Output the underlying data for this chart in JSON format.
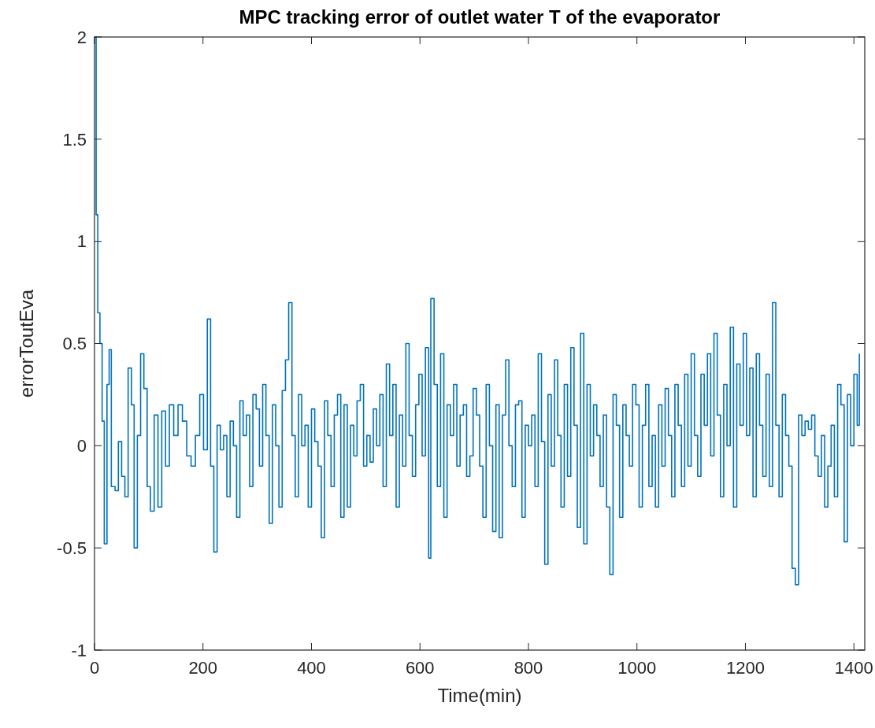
{
  "chart_data": {
    "type": "step",
    "title": "MPC tracking error of outlet water T of the evaporator",
    "xlabel": "Time(min)",
    "ylabel": "errorToutEva",
    "xlim": [
      0,
      1420
    ],
    "xticks": [
      0,
      200,
      400,
      600,
      800,
      1000,
      1200,
      1400
    ],
    "ylim": [
      -1,
      2
    ],
    "yticks": [
      -1,
      -0.5,
      0,
      0.5,
      1,
      1.5,
      2
    ],
    "grid": false,
    "x": [
      0,
      3,
      6,
      10,
      14,
      18,
      23,
      27,
      31,
      38,
      44,
      50,
      56,
      62,
      68,
      73,
      79,
      85,
      91,
      97,
      103,
      110,
      117,
      124,
      131,
      138,
      146,
      154,
      162,
      170,
      178,
      186,
      194,
      201,
      208,
      214,
      220,
      226,
      232,
      238,
      244,
      250,
      256,
      262,
      268,
      274,
      280,
      286,
      292,
      298,
      304,
      310,
      316,
      322,
      328,
      334,
      340,
      346,
      352,
      358,
      364,
      370,
      376,
      382,
      388,
      394,
      400,
      406,
      412,
      418,
      424,
      430,
      436,
      442,
      448,
      454,
      460,
      466,
      472,
      478,
      484,
      490,
      496,
      502,
      508,
      514,
      520,
      526,
      532,
      538,
      544,
      550,
      556,
      562,
      568,
      574,
      580,
      586,
      592,
      598,
      604,
      610,
      616,
      620,
      626,
      632,
      638,
      644,
      650,
      656,
      662,
      668,
      674,
      680,
      686,
      692,
      698,
      704,
      710,
      716,
      722,
      728,
      734,
      740,
      746,
      752,
      758,
      764,
      770,
      776,
      782,
      788,
      794,
      800,
      806,
      812,
      818,
      824,
      830,
      836,
      842,
      848,
      854,
      860,
      866,
      872,
      878,
      884,
      890,
      896,
      902,
      908,
      914,
      920,
      926,
      932,
      938,
      944,
      950,
      956,
      962,
      968,
      974,
      980,
      986,
      992,
      998,
      1004,
      1010,
      1016,
      1022,
      1028,
      1034,
      1040,
      1046,
      1052,
      1058,
      1064,
      1070,
      1076,
      1082,
      1088,
      1094,
      1100,
      1106,
      1112,
      1118,
      1124,
      1130,
      1136,
      1142,
      1148,
      1154,
      1160,
      1166,
      1172,
      1178,
      1184,
      1190,
      1196,
      1202,
      1208,
      1214,
      1220,
      1226,
      1232,
      1238,
      1244,
      1250,
      1256,
      1262,
      1268,
      1274,
      1280,
      1286,
      1292,
      1298,
      1304,
      1310,
      1316,
      1322,
      1328,
      1334,
      1340,
      1346,
      1352,
      1358,
      1364,
      1370,
      1376,
      1382,
      1388,
      1394,
      1400,
      1406,
      1410
    ],
    "series": [
      {
        "color": "#0072bd",
        "values": [
          2.0,
          1.13,
          0.65,
          0.5,
          0.12,
          -0.48,
          0.3,
          0.47,
          -0.2,
          -0.22,
          0.02,
          -0.15,
          -0.25,
          0.38,
          0.2,
          -0.5,
          0.05,
          0.45,
          0.28,
          -0.2,
          -0.32,
          0.15,
          -0.3,
          0.17,
          -0.1,
          0.2,
          0.05,
          0.2,
          0.12,
          -0.05,
          -0.1,
          0.05,
          0.25,
          -0.02,
          0.62,
          -0.1,
          -0.52,
          0.1,
          -0.02,
          0.05,
          -0.25,
          0.12,
          0.0,
          -0.35,
          0.22,
          0.05,
          0.15,
          -0.2,
          0.25,
          0.18,
          -0.1,
          0.3,
          0.05,
          -0.38,
          0.2,
          0.0,
          -0.3,
          0.27,
          0.42,
          0.7,
          0.05,
          -0.25,
          0.25,
          0.0,
          0.1,
          -0.3,
          0.18,
          0.02,
          -0.1,
          -0.45,
          0.22,
          0.05,
          -0.2,
          0.15,
          0.25,
          -0.35,
          0.2,
          -0.3,
          0.1,
          -0.05,
          0.22,
          0.3,
          -0.1,
          0.05,
          -0.08,
          0.18,
          0.0,
          0.25,
          -0.2,
          0.4,
          0.05,
          0.3,
          -0.3,
          0.15,
          -0.1,
          0.5,
          0.05,
          -0.15,
          0.2,
          0.35,
          -0.05,
          0.48,
          -0.55,
          0.72,
          0.3,
          -0.2,
          0.45,
          -0.35,
          0.2,
          0.05,
          0.3,
          -0.1,
          0.15,
          0.2,
          -0.15,
          -0.05,
          0.28,
          0.15,
          -0.1,
          -0.35,
          0.3,
          0.0,
          -0.42,
          0.2,
          -0.45,
          0.15,
          0.42,
          0.0,
          -0.2,
          0.2,
          0.22,
          -0.35,
          0.1,
          0.0,
          0.15,
          -0.2,
          0.45,
          0.02,
          -0.58,
          0.25,
          -0.1,
          0.42,
          0.05,
          -0.3,
          0.3,
          -0.15,
          0.48,
          0.1,
          -0.4,
          0.55,
          -0.48,
          0.3,
          -0.05,
          0.2,
          0.05,
          -0.2,
          0.15,
          -0.3,
          -0.63,
          0.25,
          0.1,
          -0.35,
          0.2,
          0.05,
          -0.1,
          0.3,
          0.2,
          -0.3,
          0.1,
          0.3,
          -0.2,
          0.05,
          -0.3,
          0.2,
          -0.1,
          0.28,
          0.05,
          -0.25,
          0.3,
          0.1,
          -0.2,
          0.35,
          -0.1,
          0.45,
          0.05,
          -0.15,
          0.35,
          0.1,
          0.45,
          -0.05,
          0.55,
          0.15,
          -0.25,
          0.3,
          0.0,
          0.58,
          -0.3,
          0.4,
          0.1,
          0.55,
          0.05,
          0.38,
          -0.25,
          0.45,
          0.1,
          -0.15,
          0.35,
          -0.2,
          0.7,
          0.1,
          -0.25,
          0.25,
          0.05,
          -0.1,
          -0.6,
          -0.68,
          0.15,
          0.05,
          0.12,
          0.08,
          0.15,
          -0.05,
          -0.15,
          0.05,
          -0.3,
          -0.1,
          0.1,
          -0.25,
          0.3,
          0.2,
          -0.47,
          0.25,
          0.0,
          0.35,
          0.1,
          0.45
        ]
      }
    ]
  }
}
